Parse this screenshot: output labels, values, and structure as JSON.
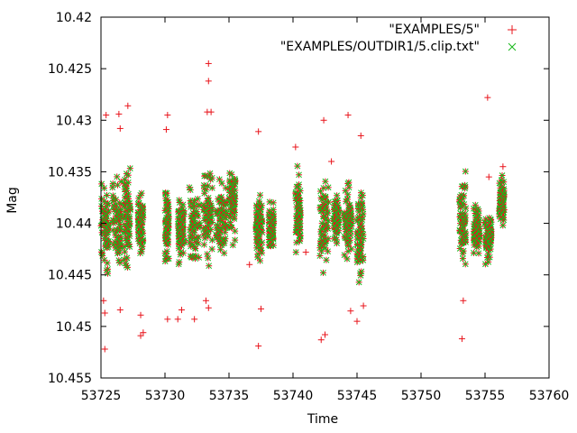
{
  "chart_data": {
    "type": "scatter",
    "xlabel": "Time",
    "ylabel": "Mag",
    "xlim": [
      53725,
      53760
    ],
    "ylim": [
      10.455,
      10.42
    ],
    "y_inverted": true,
    "xticks": [
      53725,
      53730,
      53735,
      53740,
      53745,
      53750,
      53755,
      53760
    ],
    "yticks": [
      10.42,
      10.425,
      10.43,
      10.435,
      10.44,
      10.445,
      10.45,
      10.455
    ],
    "xtick_labels": [
      "53725",
      "53730",
      "53735",
      "53740",
      "53745",
      "53750",
      "53755",
      "53760"
    ],
    "ytick_labels": [
      "10.42",
      "10.425",
      "10.43",
      "10.435",
      "10.44",
      "10.445",
      "10.45",
      "10.455"
    ],
    "grid": false,
    "legend_position": "top-right",
    "legend": [
      {
        "label": "\"EXAMPLES/5\"",
        "color": "#e8141b",
        "marker": "plus"
      },
      {
        "label": "\"EXAMPLES/OUTDIR1/5.clip.txt\"",
        "color": "#17b81a",
        "marker": "cross"
      }
    ],
    "colors": {
      "series1": "#e8141b",
      "series2": "#17b81a"
    },
    "clusters": [
      {
        "x": [
          53725.0,
          53725.6
        ],
        "ylo": 10.4355,
        "yhi": 10.4455
      },
      {
        "x": [
          53725.9,
          53726.6
        ],
        "ylo": 10.4345,
        "yhi": 10.4455
      },
      {
        "x": [
          53726.8,
          53727.3
        ],
        "ylo": 10.4335,
        "yhi": 10.4455
      },
      {
        "x": [
          53727.9,
          53728.3
        ],
        "ylo": 10.4365,
        "yhi": 10.4435
      },
      {
        "x": [
          53730.0,
          53730.3
        ],
        "ylo": 10.4355,
        "yhi": 10.4445
      },
      {
        "x": [
          53731.0,
          53731.5
        ],
        "ylo": 10.4365,
        "yhi": 10.4445
      },
      {
        "x": [
          53731.9,
          53732.7
        ],
        "ylo": 10.4345,
        "yhi": 10.4455
      },
      {
        "x": [
          53733.0,
          53733.7
        ],
        "ylo": 10.4335,
        "yhi": 10.4455
      },
      {
        "x": [
          53734.0,
          53734.8
        ],
        "ylo": 10.4345,
        "yhi": 10.4445
      },
      {
        "x": [
          53735.0,
          53735.5
        ],
        "ylo": 10.4335,
        "yhi": 10.4425
      },
      {
        "x": [
          53737.1,
          53737.6
        ],
        "ylo": 10.4365,
        "yhi": 10.4445
      },
      {
        "x": [
          53738.1,
          53738.5
        ],
        "ylo": 10.4375,
        "yhi": 10.4435
      },
      {
        "x": [
          53740.2,
          53740.6
        ],
        "ylo": 10.4335,
        "yhi": 10.4445
      },
      {
        "x": [
          53742.1,
          53742.8
        ],
        "ylo": 10.4345,
        "yhi": 10.4455
      },
      {
        "x": [
          53743.2,
          53743.6
        ],
        "ylo": 10.4365,
        "yhi": 10.4425
      },
      {
        "x": [
          53744.0,
          53744.6
        ],
        "ylo": 10.4345,
        "yhi": 10.4445
      },
      {
        "x": [
          53745.0,
          53745.5
        ],
        "ylo": 10.4355,
        "yhi": 10.4465
      },
      {
        "x": [
          53753.0,
          53753.5
        ],
        "ylo": 10.4345,
        "yhi": 10.4455
      },
      {
        "x": [
          53754.1,
          53754.6
        ],
        "ylo": 10.4375,
        "yhi": 10.4435
      },
      {
        "x": [
          53755.0,
          53755.5
        ],
        "ylo": 10.4385,
        "yhi": 10.4445
      },
      {
        "x": [
          53756.1,
          53756.5
        ],
        "ylo": 10.4345,
        "yhi": 10.4415
      }
    ],
    "outliers": [
      {
        "x": 53725.3,
        "y": 10.4522
      },
      {
        "x": 53725.4,
        "y": 10.4295
      },
      {
        "x": 53725.2,
        "y": 10.4475
      },
      {
        "x": 53725.3,
        "y": 10.4487
      },
      {
        "x": 53726.4,
        "y": 10.4294
      },
      {
        "x": 53726.5,
        "y": 10.4308
      },
      {
        "x": 53726.5,
        "y": 10.4484
      },
      {
        "x": 53727.1,
        "y": 10.4286
      },
      {
        "x": 53728.1,
        "y": 10.4489
      },
      {
        "x": 53728.1,
        "y": 10.4509
      },
      {
        "x": 53728.3,
        "y": 10.4506
      },
      {
        "x": 53730.2,
        "y": 10.4295
      },
      {
        "x": 53730.1,
        "y": 10.4309
      },
      {
        "x": 53730.2,
        "y": 10.4493
      },
      {
        "x": 53731.0,
        "y": 10.4493
      },
      {
        "x": 53731.3,
        "y": 10.4484
      },
      {
        "x": 53732.3,
        "y": 10.4493
      },
      {
        "x": 53733.4,
        "y": 10.4245
      },
      {
        "x": 53733.4,
        "y": 10.4262
      },
      {
        "x": 53733.3,
        "y": 10.4292
      },
      {
        "x": 53733.6,
        "y": 10.4292
      },
      {
        "x": 53733.2,
        "y": 10.4475
      },
      {
        "x": 53733.4,
        "y": 10.4482
      },
      {
        "x": 53737.3,
        "y": 10.4519
      },
      {
        "x": 53737.3,
        "y": 10.4311
      },
      {
        "x": 53737.5,
        "y": 10.4483
      },
      {
        "x": 53740.2,
        "y": 10.4326
      },
      {
        "x": 53742.2,
        "y": 10.4513
      },
      {
        "x": 53742.5,
        "y": 10.4508
      },
      {
        "x": 53742.4,
        "y": 10.43
      },
      {
        "x": 53743.0,
        "y": 10.434
      },
      {
        "x": 53744.3,
        "y": 10.4295
      },
      {
        "x": 53744.5,
        "y": 10.4485
      },
      {
        "x": 53745.0,
        "y": 10.4495
      },
      {
        "x": 53745.3,
        "y": 10.4315
      },
      {
        "x": 53745.5,
        "y": 10.448
      },
      {
        "x": 53753.2,
        "y": 10.4512
      },
      {
        "x": 53753.3,
        "y": 10.4475
      },
      {
        "x": 53755.2,
        "y": 10.4278
      },
      {
        "x": 53755.3,
        "y": 10.4355
      },
      {
        "x": 53756.4,
        "y": 10.4345
      },
      {
        "x": 53736.6,
        "y": 10.444
      },
      {
        "x": 53741.0,
        "y": 10.4428
      }
    ]
  }
}
